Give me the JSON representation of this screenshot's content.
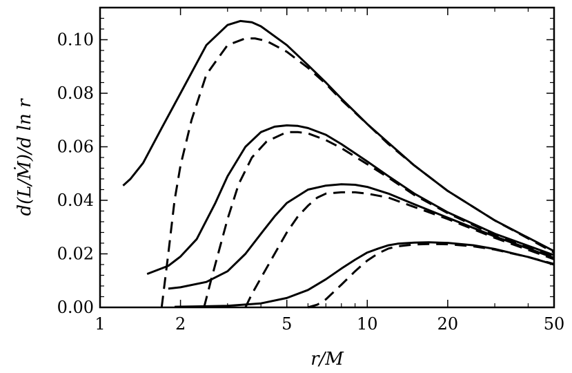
{
  "chart_data": {
    "type": "line",
    "xscale": "log",
    "xlim": [
      1,
      50
    ],
    "ylim": [
      0,
      0.112
    ],
    "xlabel": "r/M",
    "ylabel": "d(L/Ṁ)/d ln r",
    "xticks": [
      1,
      2,
      5,
      10,
      20,
      50
    ],
    "xtick_labels": [
      "1",
      "2",
      "5",
      "10",
      "20",
      "50"
    ],
    "yticks": [
      0,
      0.02,
      0.04,
      0.06,
      0.08,
      0.1
    ],
    "ytick_labels": [
      "0.00",
      "0.02",
      "0.04",
      "0.06",
      "0.08",
      "0.10"
    ],
    "grid": false,
    "series": [
      {
        "style": "solid",
        "color": "#000000",
        "x": [
          1.22,
          1.3,
          1.45,
          1.7,
          2.0,
          2.5,
          3.0,
          3.35,
          3.7,
          4.0,
          5.0,
          6.0,
          7.0,
          8.0,
          10.0,
          12.0,
          15.0,
          20.0,
          30.0,
          50.0
        ],
        "y": [
          0.0455,
          0.048,
          0.054,
          0.067,
          0.08,
          0.098,
          0.1055,
          0.107,
          0.1065,
          0.105,
          0.098,
          0.0905,
          0.084,
          0.078,
          0.0685,
          0.0615,
          0.053,
          0.0435,
          0.0325,
          0.021
        ]
      },
      {
        "style": "dashed",
        "color": "#000000",
        "x": [
          1.7,
          1.8,
          1.9,
          2.0,
          2.2,
          2.5,
          3.0,
          3.5,
          3.8,
          4.2,
          5.0,
          6.0,
          7.0,
          8.0,
          10.0,
          12.0,
          15.0,
          20.0,
          30.0,
          50.0
        ],
        "y": [
          0.0,
          0.02,
          0.04,
          0.053,
          0.07,
          0.087,
          0.098,
          0.1005,
          0.1005,
          0.0995,
          0.0955,
          0.0895,
          0.0835,
          0.0775,
          0.0685,
          0.061,
          0.053,
          0.0435,
          0.0325,
          0.0205
        ]
      },
      {
        "style": "solid",
        "color": "#000000",
        "x": [
          1.5,
          1.8,
          2.0,
          2.3,
          2.7,
          3.0,
          3.5,
          4.0,
          4.5,
          5.0,
          5.5,
          6.0,
          7.0,
          8.0,
          10.0,
          12.0,
          15.0,
          20.0,
          30.0,
          50.0
        ],
        "y": [
          0.0125,
          0.0155,
          0.019,
          0.0255,
          0.039,
          0.049,
          0.06,
          0.0655,
          0.0675,
          0.068,
          0.0678,
          0.067,
          0.0645,
          0.061,
          0.0545,
          0.049,
          0.0425,
          0.0355,
          0.0275,
          0.0195
        ]
      },
      {
        "style": "dashed",
        "color": "#000000",
        "x": [
          2.45,
          2.6,
          2.8,
          3.0,
          3.3,
          3.7,
          4.2,
          5.0,
          5.5,
          6.0,
          7.0,
          8.0,
          10.0,
          12.0,
          15.0,
          20.0,
          30.0,
          50.0
        ],
        "y": [
          0.0,
          0.01,
          0.022,
          0.033,
          0.046,
          0.056,
          0.062,
          0.0655,
          0.0655,
          0.065,
          0.0625,
          0.0595,
          0.0535,
          0.0485,
          0.042,
          0.0352,
          0.027,
          0.019
        ]
      },
      {
        "style": "solid",
        "color": "#000000",
        "x": [
          1.8,
          2.0,
          2.5,
          3.0,
          3.5,
          4.0,
          4.5,
          5.0,
          6.0,
          7.0,
          8.0,
          9.0,
          10.0,
          12.0,
          15.0,
          20.0,
          30.0,
          50.0
        ],
        "y": [
          0.007,
          0.0075,
          0.0095,
          0.0135,
          0.02,
          0.0275,
          0.034,
          0.039,
          0.044,
          0.0455,
          0.046,
          0.0458,
          0.045,
          0.0425,
          0.0385,
          0.0335,
          0.0265,
          0.0185
        ]
      },
      {
        "style": "dashed",
        "color": "#000000",
        "x": [
          3.5,
          3.7,
          4.0,
          4.5,
          5.0,
          5.5,
          6.0,
          6.5,
          7.0,
          8.0,
          9.0,
          10.0,
          12.0,
          15.0,
          20.0,
          30.0,
          50.0
        ],
        "y": [
          0.0,
          0.005,
          0.011,
          0.02,
          0.028,
          0.034,
          0.038,
          0.041,
          0.0425,
          0.043,
          0.043,
          0.0425,
          0.041,
          0.0375,
          0.033,
          0.026,
          0.018
        ]
      },
      {
        "style": "solid",
        "color": "#000000",
        "x": [
          1.9,
          2.5,
          3.0,
          4.0,
          5.0,
          6.0,
          7.0,
          8.0,
          9.0,
          10.0,
          11.0,
          12.0,
          13.0,
          15.0,
          17.0,
          20.0,
          25.0,
          30.0,
          40.0,
          50.0
        ],
        "y": [
          0.0002,
          0.0004,
          0.0006,
          0.0015,
          0.0035,
          0.0065,
          0.0105,
          0.0145,
          0.0178,
          0.0205,
          0.022,
          0.0232,
          0.0238,
          0.0242,
          0.0243,
          0.0241,
          0.0232,
          0.0218,
          0.0188,
          0.016
        ]
      },
      {
        "style": "dashed",
        "color": "#000000",
        "x": [
          6.0,
          6.5,
          7.0,
          8.0,
          9.0,
          10.0,
          11.0,
          12.0,
          13.0,
          15.0,
          17.0,
          20.0,
          25.0,
          30.0,
          40.0,
          50.0
        ],
        "y": [
          0.0,
          0.001,
          0.003,
          0.0085,
          0.0135,
          0.0175,
          0.0202,
          0.022,
          0.0228,
          0.0235,
          0.0237,
          0.0236,
          0.0228,
          0.0216,
          0.0188,
          0.0162
        ]
      }
    ]
  }
}
